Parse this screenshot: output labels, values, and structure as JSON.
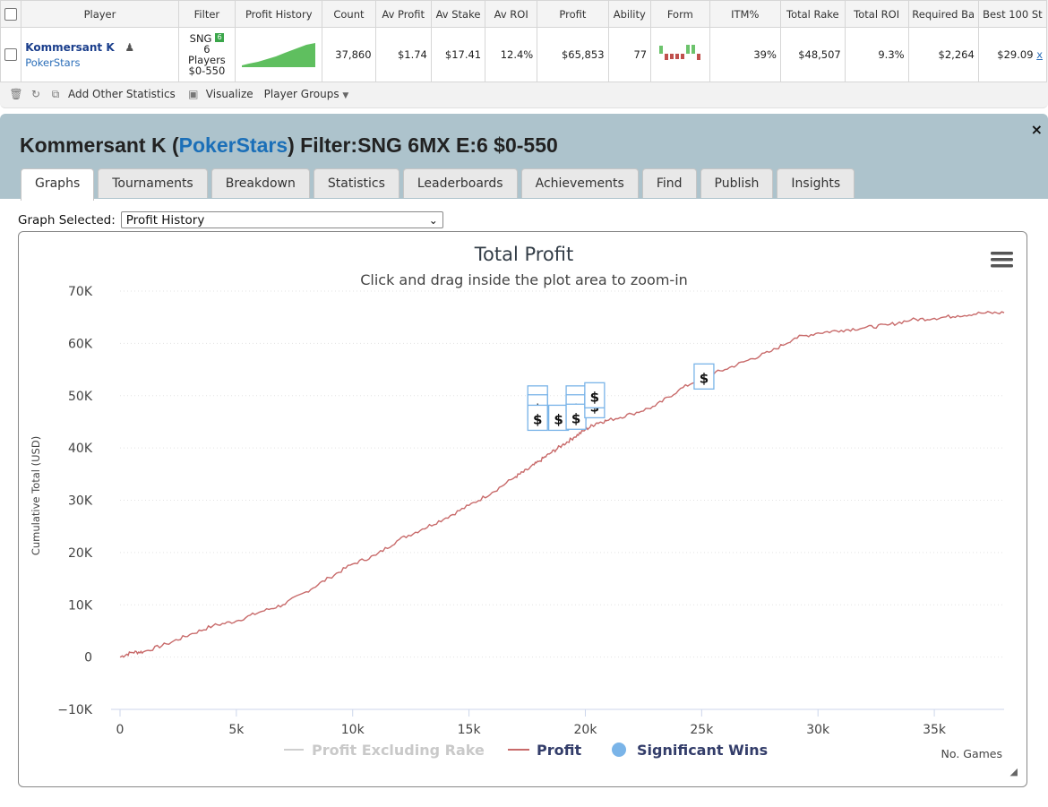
{
  "table": {
    "headers": [
      "",
      "Player",
      "Filter",
      "Profit History",
      "Count",
      "Av Profit",
      "Av Stake",
      "Av ROI",
      "Profit",
      "Ability",
      "Form",
      "ITM%",
      "Total Rake",
      "Total ROI",
      "Required Ba",
      "Best 100 St"
    ],
    "row": {
      "player_name": "Kommersant K",
      "site": "PokerStars",
      "filter_line1": "SNG",
      "filter_badge": "6",
      "filter_line2": "6",
      "filter_line3": "Players",
      "filter_line4": "$0-550",
      "count": "37,860",
      "av_profit": "$1.74",
      "av_stake": "$17.41",
      "av_roi": "12.4%",
      "profit": "$65,853",
      "ability": "77",
      "itm": "39%",
      "total_rake": "$48,507",
      "total_roi": "9.3%",
      "required_ba": "$2,264",
      "best_100": "$29.09",
      "remove_link": "x"
    }
  },
  "toolbar": {
    "add_stats": "Add Other Statistics",
    "visualize": "Visualize",
    "player_groups": "Player Groups"
  },
  "panel": {
    "title_name": "Kommersant K (",
    "title_site": "PokerStars",
    "title_rest": ") Filter:SNG 6MX E:6 $0-550",
    "close": "×",
    "tabs": [
      "Graphs",
      "Tournaments",
      "Breakdown",
      "Statistics",
      "Leaderboards",
      "Achievements",
      "Find",
      "Publish",
      "Insights"
    ],
    "graph_selected_label": "Graph Selected:",
    "graph_selected_value": "Profit History"
  },
  "chart_data": {
    "type": "line",
    "title": "Total Profit",
    "subtitle": "Click and drag inside the plot area to zoom-in",
    "ylabel": "Cumulative Total (USD)",
    "xlabel": "No. Games",
    "xlim": [
      0,
      38000
    ],
    "ylim": [
      -10000,
      70000
    ],
    "x_ticks": [
      0,
      5000,
      10000,
      15000,
      20000,
      25000,
      30000,
      35000
    ],
    "x_tick_labels": [
      "0",
      "5k",
      "10k",
      "15k",
      "20k",
      "25k",
      "30k",
      "35k"
    ],
    "y_ticks": [
      -10000,
      0,
      10000,
      20000,
      30000,
      40000,
      50000,
      60000,
      70000
    ],
    "y_tick_labels": [
      "−10K",
      "0",
      "10K",
      "20K",
      "30K",
      "40K",
      "50K",
      "60K",
      "70K"
    ],
    "legend": [
      "Profit Excluding Rake",
      "Profit",
      "Significant Wins"
    ],
    "legend_position": "bottom",
    "series": [
      {
        "name": "Profit",
        "color": "#c86a6a",
        "x": [
          0,
          500,
          1000,
          2000,
          3000,
          4000,
          5000,
          6000,
          7000,
          8000,
          9000,
          10000,
          11000,
          12000,
          13000,
          14000,
          15000,
          16000,
          17000,
          17500,
          18000,
          18500,
          19000,
          19500,
          20000,
          20500,
          21000,
          22000,
          23000,
          24000,
          25000,
          26000,
          27000,
          28000,
          29000,
          30000,
          31000,
          32000,
          33000,
          34000,
          35000,
          36000,
          37000,
          38000
        ],
        "y": [
          0,
          900,
          1000,
          2500,
          4300,
          6000,
          6900,
          8600,
          10000,
          12500,
          15200,
          17800,
          19500,
          22500,
          24500,
          26600,
          29000,
          31500,
          34500,
          35800,
          37400,
          39000,
          40500,
          42000,
          43500,
          44800,
          45300,
          46500,
          48000,
          51000,
          53500,
          55000,
          56800,
          58500,
          61000,
          62000,
          62500,
          63000,
          63500,
          64500,
          64800,
          65300,
          65800,
          65850
        ]
      }
    ],
    "significant_wins_label": "$",
    "series_colors": {
      "profit_ex_rake": "#cfcfcf",
      "significant_wins": "#7ab4e8"
    }
  },
  "menu_icon": "hamburger-menu-icon"
}
